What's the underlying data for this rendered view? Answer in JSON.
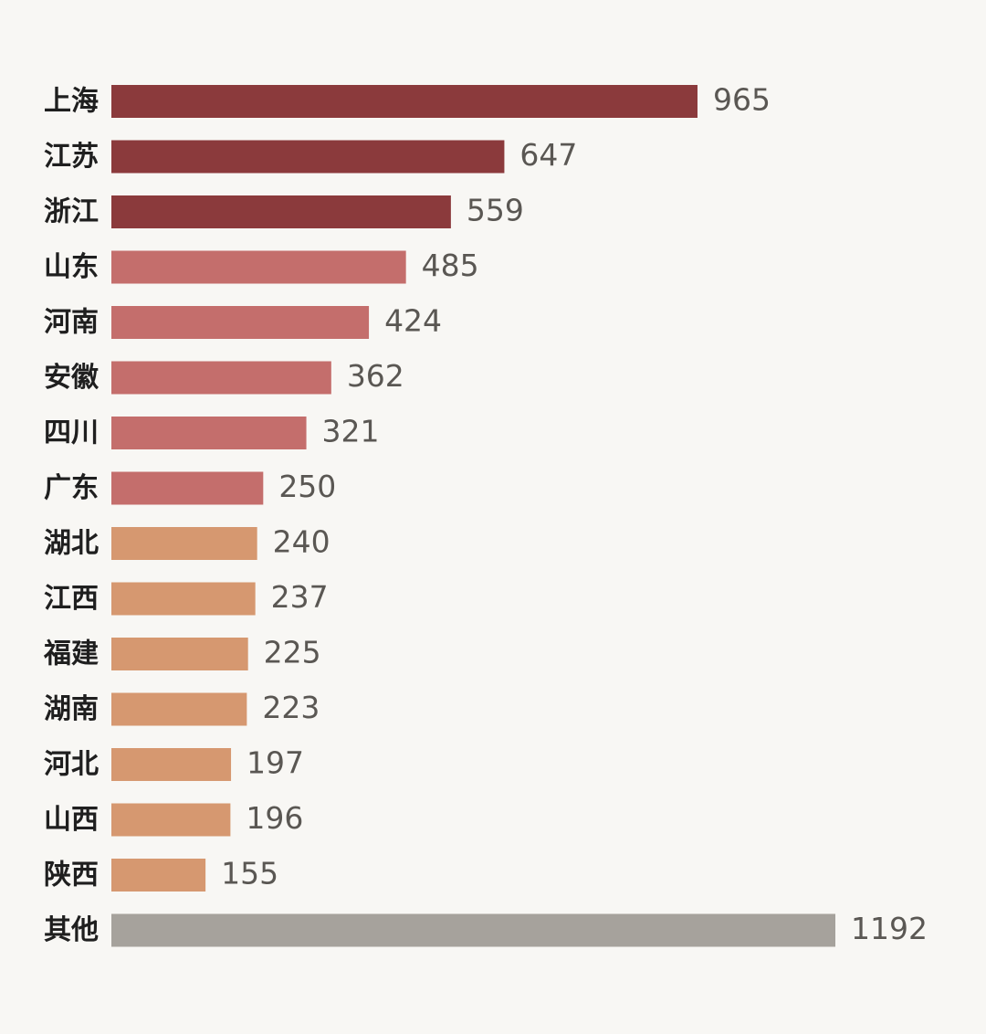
{
  "chart_data": {
    "type": "bar",
    "orientation": "horizontal",
    "title": "",
    "xlabel": "",
    "ylabel": "",
    "grid": false,
    "legend": "none",
    "xlim": [
      0,
      1192
    ],
    "categories": [
      "上海",
      "江苏",
      "浙江",
      "山东",
      "河南",
      "安徽",
      "四川",
      "广东",
      "湖北",
      "江西",
      "福建",
      "湖南",
      "河北",
      "山西",
      "陕西",
      "其他"
    ],
    "values": [
      965,
      647,
      559,
      485,
      424,
      362,
      321,
      250,
      240,
      237,
      225,
      223,
      197,
      196,
      155,
      1192
    ],
    "bar_colors": [
      "#8b3a3c",
      "#8b3a3c",
      "#8b3a3c",
      "#c46e6c",
      "#c46e6c",
      "#c46e6c",
      "#c46e6c",
      "#c46e6c",
      "#d69870",
      "#d69870",
      "#d69870",
      "#d69870",
      "#d69870",
      "#d69870",
      "#d69870",
      "#a6a29c"
    ]
  },
  "colors": {
    "background": "#f8f7f4",
    "category_text": "#1f1f1f",
    "value_text": "#5a5753"
  }
}
